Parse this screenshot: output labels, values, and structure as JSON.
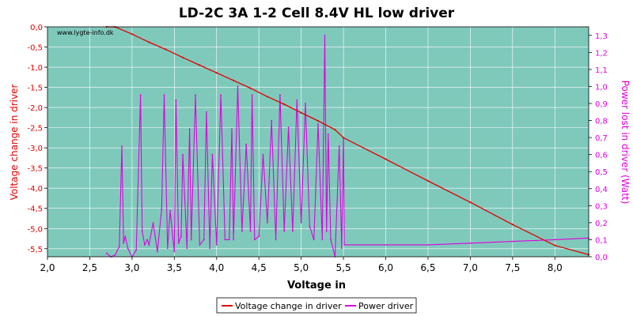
{
  "chart_data": {
    "type": "line",
    "title": "LD-2C 3A 1-2 Cell 8.4V HL low driver",
    "watermark": "www.lygte-info.dk",
    "xlabel": "Voltage in",
    "ylabel": "Voltage change in driver",
    "y2label": "Power lost in driver (Watt)",
    "xlim": [
      2.0,
      8.4
    ],
    "ylim": [
      -5.7,
      0.0
    ],
    "y2lim": [
      0.0,
      1.35
    ],
    "x_ticks": [
      "2,0",
      "2,5",
      "3,0",
      "3,5",
      "4,0",
      "4,5",
      "5,0",
      "5,5",
      "6,0",
      "6,5",
      "7,0",
      "7,5",
      "8,0"
    ],
    "y_ticks": [
      "0,0",
      "-0,5",
      "-1,0",
      "-1,5",
      "-2,0",
      "-2,5",
      "-3,0",
      "-3,5",
      "-4,0",
      "-4,5",
      "-5,0",
      "-5,5"
    ],
    "y2_ticks": [
      "0,0",
      "0,1",
      "0,2",
      "0,3",
      "0,4",
      "0,5",
      "0,6",
      "0,7",
      "0,8",
      "0,9",
      "1,0",
      "1,1",
      "1,2",
      "1,3"
    ],
    "grid": true,
    "legend_position": "bottom",
    "colors": {
      "plot_bg": "#7fc9bb",
      "grid": "#ffffff",
      "voltage": "#e00000",
      "power": "#e000e0",
      "title": "#000000"
    },
    "series": [
      {
        "name": "Voltage change in driver",
        "axis": "left",
        "x": [
          2.7,
          2.8,
          3.0,
          3.2,
          3.4,
          3.6,
          3.8,
          4.0,
          4.2,
          4.4,
          4.6,
          4.8,
          5.0,
          5.2,
          5.4,
          5.5,
          6.0,
          6.5,
          7.0,
          7.5,
          8.0,
          8.4
        ],
        "values": [
          0.0,
          0.0,
          -0.18,
          -0.38,
          -0.56,
          -0.76,
          -0.95,
          -1.14,
          -1.33,
          -1.52,
          -1.73,
          -1.92,
          -2.13,
          -2.33,
          -2.55,
          -2.75,
          -3.28,
          -3.82,
          -4.35,
          -4.9,
          -5.42,
          -5.65
        ]
      },
      {
        "name": "Power driver",
        "axis": "right",
        "x": [
          2.7,
          2.75,
          2.8,
          2.85,
          2.88,
          2.9,
          2.92,
          2.95,
          3.0,
          3.05,
          3.1,
          3.12,
          3.15,
          3.18,
          3.2,
          3.25,
          3.3,
          3.35,
          3.38,
          3.42,
          3.45,
          3.5,
          3.52,
          3.55,
          3.58,
          3.6,
          3.65,
          3.68,
          3.7,
          3.75,
          3.8,
          3.85,
          3.88,
          3.92,
          3.95,
          4.0,
          4.05,
          4.1,
          4.15,
          4.18,
          4.2,
          4.25,
          4.3,
          4.35,
          4.4,
          4.42,
          4.45,
          4.5,
          4.55,
          4.6,
          4.65,
          4.7,
          4.75,
          4.8,
          4.85,
          4.9,
          4.95,
          5.0,
          5.05,
          5.1,
          5.15,
          5.2,
          5.25,
          5.28,
          5.3,
          5.32,
          5.35,
          5.4,
          5.45,
          5.48,
          5.5,
          5.51,
          6.0,
          6.5,
          7.0,
          7.5,
          8.0,
          8.4
        ],
        "values": [
          0.02,
          0.0,
          0.01,
          0.06,
          0.65,
          0.08,
          0.12,
          0.05,
          0.0,
          0.04,
          0.95,
          0.15,
          0.07,
          0.1,
          0.07,
          0.2,
          0.03,
          0.28,
          0.95,
          0.05,
          0.27,
          0.03,
          0.92,
          0.08,
          0.12,
          0.6,
          0.05,
          0.75,
          0.1,
          0.95,
          0.07,
          0.1,
          0.85,
          0.05,
          0.6,
          0.07,
          0.95,
          0.1,
          0.1,
          0.75,
          0.1,
          1.0,
          0.15,
          0.66,
          0.15,
          0.95,
          0.1,
          0.12,
          0.6,
          0.2,
          0.8,
          0.1,
          0.95,
          0.15,
          0.76,
          0.15,
          0.92,
          0.2,
          0.9,
          0.18,
          0.1,
          0.78,
          0.1,
          1.3,
          0.15,
          0.72,
          0.1,
          0.0,
          0.65,
          0.05,
          0.7,
          0.07,
          0.07,
          0.07,
          0.08,
          0.09,
          0.1,
          0.11
        ]
      }
    ]
  }
}
